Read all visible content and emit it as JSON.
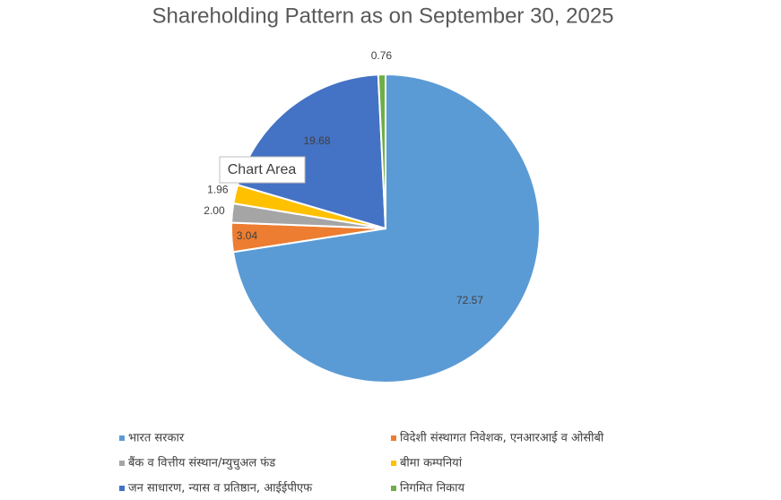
{
  "chart_data": {
    "type": "pie",
    "title": "Shareholding Pattern as on September 30, 2025",
    "categories": [
      "भारत सरकार",
      "विदेशी संस्थागत निवेशक, एनआरआई व ओसीबी",
      "बैंक व वित्तीय संस्थान/म्युचुअल फंड",
      "बीमा कम्पनियां",
      "जन साधारण, न्यास व प्रतिष्ठान, आईईपीएफ",
      "निगमित निकाय"
    ],
    "values": [
      72.57,
      3.04,
      2,
      1.96,
      19.68,
      0.76
    ],
    "value_labels": [
      "72.57",
      "3.04",
      "2.00",
      "1.96",
      "19.68",
      "0.76"
    ],
    "colors": [
      "#5b9bd5",
      "#ed7d31",
      "#a5a5a5",
      "#ffc000",
      "#4472c4",
      "#70ad47"
    ],
    "legend": "bottom",
    "tooltip": "Chart Area"
  }
}
